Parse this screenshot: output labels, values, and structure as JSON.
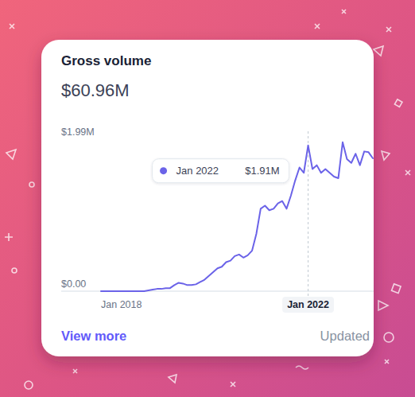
{
  "chart_data": {
    "type": "line",
    "title": "Gross volume",
    "subtitle": "$60.96M",
    "categories": [
      "Jan 2018",
      null,
      null,
      null,
      null,
      null,
      null,
      null,
      null,
      null,
      null,
      null,
      null,
      null,
      null,
      null,
      null,
      null,
      null,
      null,
      null,
      null,
      null,
      null,
      null,
      null,
      null,
      null,
      null,
      null,
      null,
      null,
      null,
      null,
      null,
      null,
      null,
      null,
      null,
      null,
      null,
      null,
      null,
      null,
      null,
      null,
      null,
      null,
      "Jan 2022",
      null,
      null,
      null,
      null,
      null,
      null,
      null,
      null,
      null,
      null,
      null,
      null,
      null,
      null,
      null
    ],
    "values": [
      0,
      0,
      0,
      0,
      0,
      0,
      0,
      0,
      0,
      0,
      0,
      10000,
      20000,
      30000,
      30000,
      40000,
      40000,
      80000,
      110000,
      100000,
      80000,
      80000,
      90000,
      120000,
      150000,
      200000,
      250000,
      300000,
      320000,
      380000,
      400000,
      460000,
      480000,
      440000,
      470000,
      530000,
      750000,
      1080000,
      1120000,
      1060000,
      1080000,
      1150000,
      1180000,
      1080000,
      1250000,
      1450000,
      1620000,
      1550000,
      1910000,
      1600000,
      1650000,
      1550000,
      1600000,
      1550000,
      1500000,
      1480000,
      1950000,
      1730000,
      1680000,
      1800000,
      1650000,
      1830000,
      1820000,
      1740000
    ],
    "color": "#6b63e8",
    "ylim": [
      0,
      1990000
    ],
    "yticks": [
      {
        "value": 0,
        "label": "$0.00"
      },
      {
        "value": 1990000,
        "label": "$1.99M"
      }
    ],
    "grid": false,
    "annotations": [
      {
        "category": "Jan 2022",
        "label": "$1.91M",
        "value": 1910000
      }
    ],
    "link": "View more",
    "note": "Updated"
  }
}
